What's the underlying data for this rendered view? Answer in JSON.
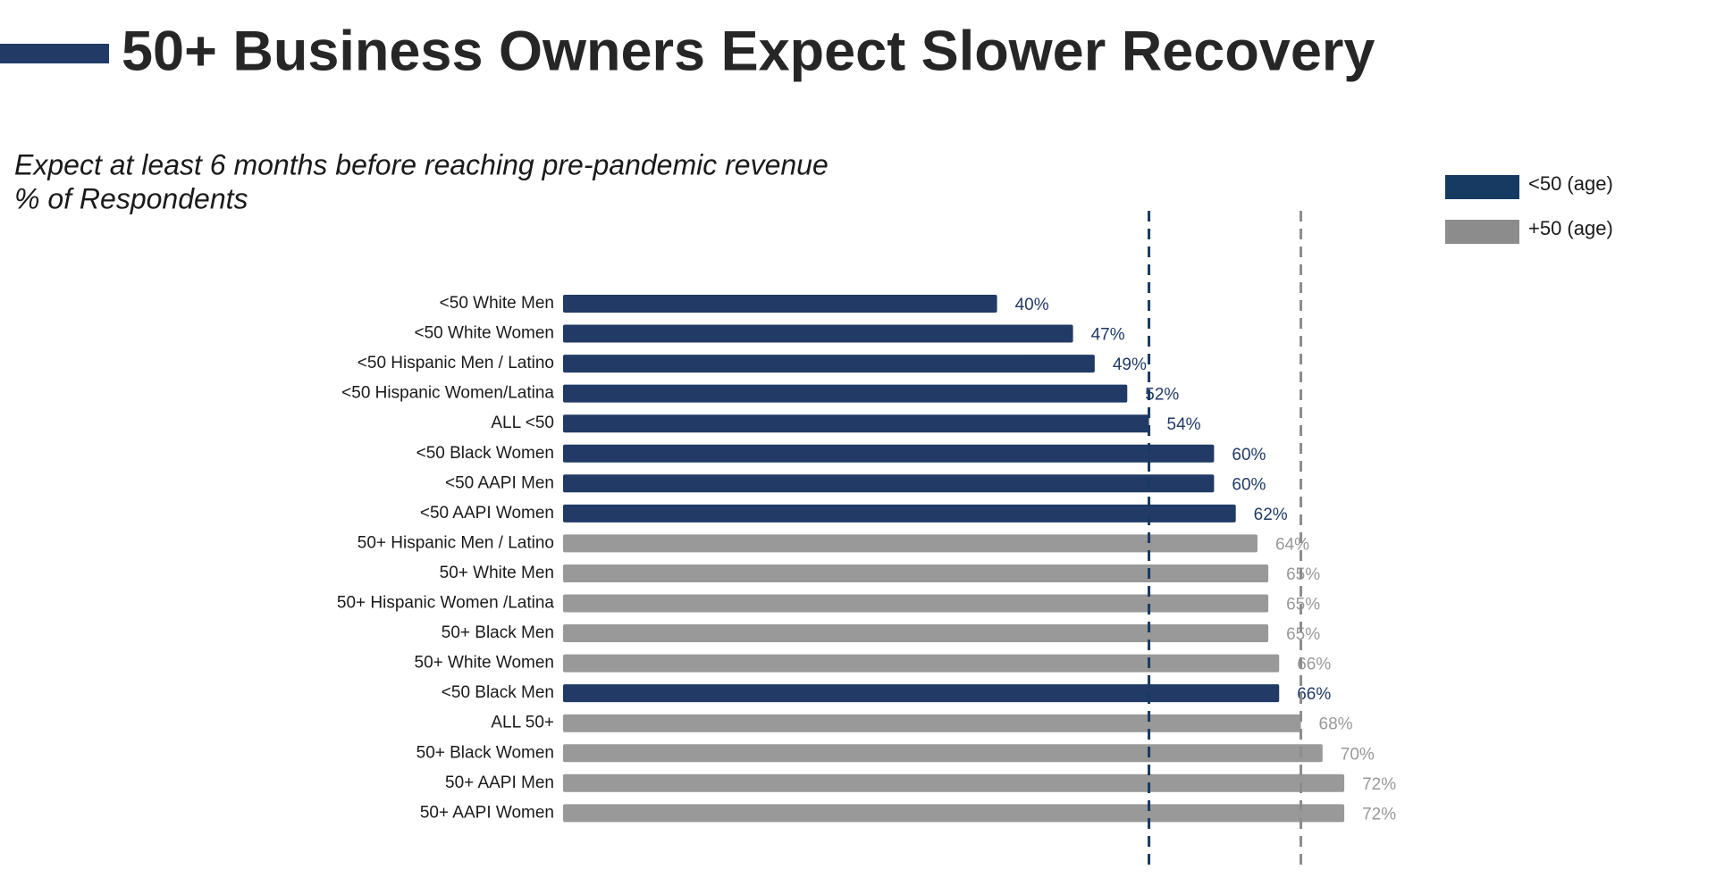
{
  "chart_data": {
    "type": "bar",
    "orientation": "horizontal",
    "title": "50+ Business Owners Expect Slower Recovery",
    "subtitle": "Expect at least 6 months before reaching pre-pandemic revenue",
    "units_label": "% of Respondents",
    "categories": [
      "<50 White Men",
      "<50 White Women",
      "<50 Hispanic Men / Latino",
      "<50 Hispanic Women/Latina",
      "ALL <50",
      "<50 Black Women",
      "<50 AAPI Men",
      "<50 AAPI Women",
      "50+ Hispanic Men / Latino",
      "50+ White Men",
      "50+ Hispanic Women /Latina",
      "50+ Black Men",
      "50+ White Women",
      "<50 Black Men",
      "ALL 50+",
      "50+ Black Women",
      "50+ AAPI Men",
      "50+ AAPI Women"
    ],
    "values": [
      40,
      47,
      49,
      52,
      54,
      60,
      60,
      62,
      64,
      65,
      65,
      65,
      66,
      66,
      68,
      70,
      72,
      72
    ],
    "value_labels": [
      "40%",
      "47%",
      "49%",
      "52%",
      "54%",
      "60%",
      "60%",
      "62%",
      "64%",
      "65%",
      "65%",
      "65%",
      "66%",
      "66%",
      "68%",
      "70%",
      "72%",
      "72%"
    ],
    "colors": [
      "#213a66",
      "#213a66",
      "#213a66",
      "#213a66",
      "#213a66",
      "#213a66",
      "#213a66",
      "#213a66",
      "#999999",
      "#999999",
      "#999999",
      "#999999",
      "#999999",
      "#213a66",
      "#999999",
      "#999999",
      "#999999",
      "#999999"
    ],
    "reference_lines": [
      {
        "category_index": 4,
        "color": "#173a63"
      },
      {
        "category_index": 14,
        "color": "#8c8c8c"
      }
    ],
    "legend": [
      {
        "name": "<50 (age)",
        "color": "#173a63"
      },
      {
        "name": "+50 (age)",
        "color": "#8c8c8c"
      }
    ],
    "legend_position": "top-right"
  }
}
